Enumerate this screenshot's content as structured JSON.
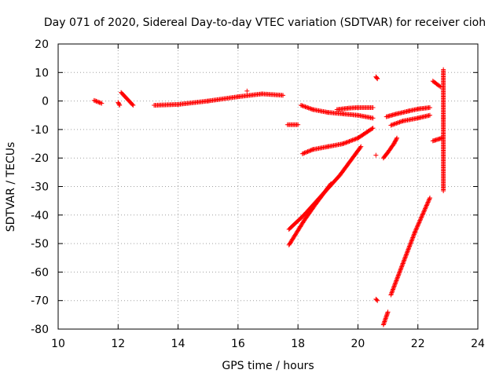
{
  "chart_data": {
    "type": "scatter",
    "title": "Day 071 of 2020, Sidereal Day-to-day VTEC variation (SDTVAR) for receiver cioh",
    "xlabel": "GPS time / hours",
    "ylabel": "SDTVAR / TECUs",
    "xlim": [
      10,
      24
    ],
    "ylim": [
      -80,
      20
    ],
    "grid": true,
    "xticks": [
      10,
      12,
      14,
      16,
      18,
      20,
      22,
      24
    ],
    "yticks": [
      -80,
      -70,
      -60,
      -50,
      -40,
      -30,
      -20,
      -10,
      0,
      10,
      20
    ],
    "marker": "+",
    "color": "#ff0000",
    "series": [
      {
        "name": "seg-11.3",
        "x": [
          11.2,
          11.45
        ],
        "y": [
          0.2,
          -0.8
        ]
      },
      {
        "name": "seg-12.0",
        "x": [
          12.0,
          12.05
        ],
        "y": [
          -0.5,
          -1.5
        ]
      },
      {
        "name": "seg-12.3",
        "x": [
          12.1,
          12.5
        ],
        "y": [
          3.0,
          -1.5
        ]
      },
      {
        "name": "seg-13-17.5",
        "x": [
          13.2,
          14.0,
          15.0,
          16.0,
          16.8,
          17.5
        ],
        "y": [
          -1.5,
          -1.2,
          0.0,
          1.5,
          2.5,
          2.0
        ]
      },
      {
        "name": "seg-17.8-flat",
        "x": [
          17.65,
          18.0
        ],
        "y": [
          -8.3,
          -8.3
        ]
      },
      {
        "name": "seg-18-20.5-upper",
        "x": [
          18.1,
          18.5,
          19.0,
          19.5,
          20.0,
          20.5
        ],
        "y": [
          -1.5,
          -3.0,
          -4.0,
          -4.5,
          -5.0,
          -6.0
        ]
      },
      {
        "name": "seg-19.3-20.5-bump",
        "x": [
          19.3,
          19.7,
          20.0,
          20.5
        ],
        "y": [
          -3.0,
          -2.5,
          -2.3,
          -2.3
        ]
      },
      {
        "name": "seg-18-20.5-lower",
        "x": [
          18.15,
          18.5,
          19.0,
          19.5,
          20.0,
          20.5
        ],
        "y": [
          -18.5,
          -17.0,
          -16.0,
          -15.0,
          -13.0,
          -9.5
        ]
      },
      {
        "name": "seg-17.7-20.1-steep-a",
        "x": [
          17.7,
          18.2,
          18.8,
          19.4,
          20.1
        ],
        "y": [
          -45.0,
          -40.0,
          -33.0,
          -26.0,
          -16.0
        ]
      },
      {
        "name": "seg-17.7-19.1-steep-b",
        "x": [
          17.7,
          18.2,
          18.6,
          19.1
        ],
        "y": [
          -50.5,
          -42.0,
          -36.0,
          -29.0
        ]
      },
      {
        "name": "seg-20.6-high",
        "x": [
          20.6,
          20.65
        ],
        "y": [
          8.5,
          7.8
        ]
      },
      {
        "name": "seg-20.6-low",
        "x": [
          20.6
        ],
        "y": [
          -19.0
        ]
      },
      {
        "name": "seg-20.6-70",
        "x": [
          20.6,
          20.65
        ],
        "y": [
          -69.5,
          -70.0
        ]
      },
      {
        "name": "seg-20.9-21.3",
        "x": [
          20.85,
          21.0,
          21.2,
          21.3
        ],
        "y": [
          -20.0,
          -18.0,
          -15.0,
          -13.0
        ]
      },
      {
        "name": "seg-20.9-bottom",
        "x": [
          20.85,
          21.0
        ],
        "y": [
          -78.5,
          -74.0
        ]
      },
      {
        "name": "seg-20.9-22.4-a",
        "x": [
          20.95,
          21.3,
          21.7,
          22.0,
          22.4
        ],
        "y": [
          -5.5,
          -4.5,
          -3.5,
          -2.8,
          -2.3
        ]
      },
      {
        "name": "seg-21.0-22.4-b",
        "x": [
          21.1,
          21.5,
          22.0,
          22.4
        ],
        "y": [
          -8.5,
          -7.0,
          -6.0,
          -5.0
        ]
      },
      {
        "name": "seg-21.1-22.4-steep",
        "x": [
          21.1,
          21.5,
          21.9,
          22.4
        ],
        "y": [
          -68.0,
          -57.0,
          -46.0,
          -34.0
        ]
      },
      {
        "name": "seg-22.5-22.8-up",
        "x": [
          22.5,
          22.75
        ],
        "y": [
          7.0,
          5.0
        ]
      },
      {
        "name": "seg-22.5-22.8-low",
        "x": [
          22.5,
          22.8
        ],
        "y": [
          -14.0,
          -13.0
        ]
      },
      {
        "name": "isolated-22.85",
        "x": [
          22.85,
          22.85,
          22.85,
          22.85
        ],
        "y": [
          11.0,
          -6.0,
          -16.5,
          -31.5
        ]
      },
      {
        "name": "isolated-16.3",
        "x": [
          16.3
        ],
        "y": [
          3.5
        ]
      }
    ]
  }
}
